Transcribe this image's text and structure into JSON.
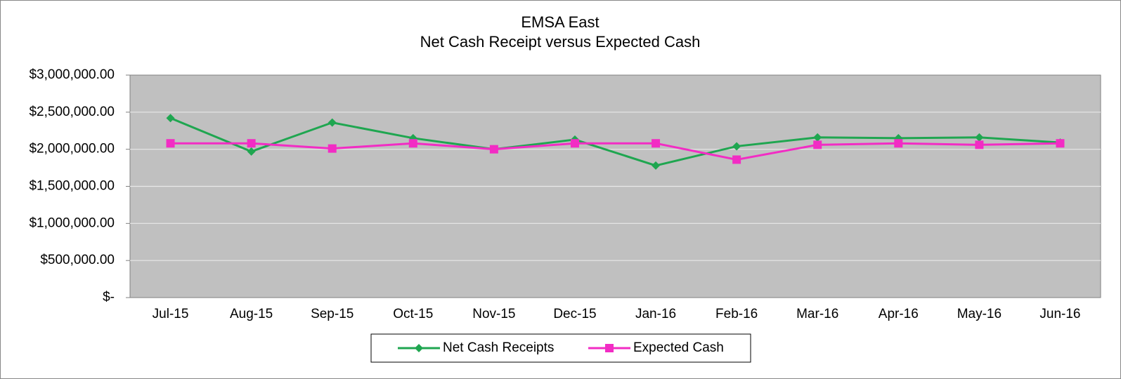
{
  "chart_data": {
    "type": "line",
    "title": "EMSA East",
    "subtitle": "Net Cash Receipt versus Expected Cash",
    "categories": [
      "Jul-15",
      "Aug-15",
      "Sep-15",
      "Oct-15",
      "Nov-15",
      "Dec-15",
      "Jan-16",
      "Feb-16",
      "Mar-16",
      "Apr-16",
      "May-16",
      "Jun-16"
    ],
    "series": [
      {
        "name": "Net Cash Receipts",
        "color": "#1fa650",
        "marker": "diamond",
        "values": [
          2420000,
          1970000,
          2360000,
          2150000,
          2000000,
          2130000,
          1780000,
          2040000,
          2160000,
          2150000,
          2160000,
          2090000
        ]
      },
      {
        "name": "Expected Cash",
        "color": "#f22cc4",
        "marker": "square",
        "values": [
          2080000,
          2080000,
          2010000,
          2080000,
          2000000,
          2080000,
          2080000,
          1860000,
          2060000,
          2080000,
          2060000,
          2080000
        ]
      }
    ],
    "ylim": [
      0,
      3000000
    ],
    "yticks": [
      {
        "value": 0,
        "label": "$-"
      },
      {
        "value": 500000,
        "label": "$500,000.00"
      },
      {
        "value": 1000000,
        "label": "$1,000,000.00"
      },
      {
        "value": 1500000,
        "label": "$1,500,000.00"
      },
      {
        "value": 2000000,
        "label": "$2,000,000.00"
      },
      {
        "value": 2500000,
        "label": "$2,500,000.00"
      },
      {
        "value": 3000000,
        "label": "$3,000,000.00"
      }
    ],
    "grid": true,
    "legend": "bottom"
  }
}
